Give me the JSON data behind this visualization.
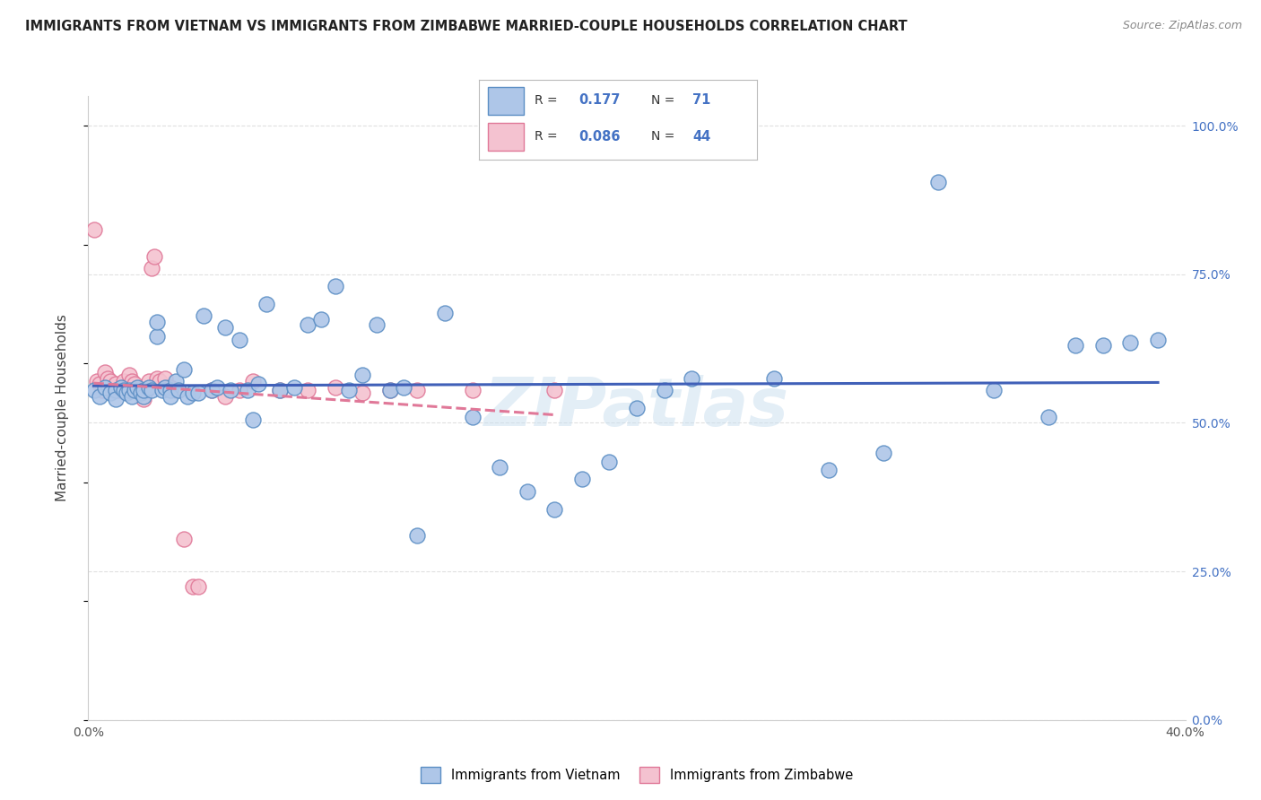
{
  "title": "IMMIGRANTS FROM VIETNAM VS IMMIGRANTS FROM ZIMBABWE MARRIED-COUPLE HOUSEHOLDS CORRELATION CHART",
  "source": "Source: ZipAtlas.com",
  "ylabel": "Married-couple Households",
  "xlim": [
    0.0,
    0.4
  ],
  "ylim": [
    0.0,
    1.05
  ],
  "xtick_positions": [
    0.0,
    0.08,
    0.16,
    0.24,
    0.32,
    0.4
  ],
  "xtick_labels": [
    "0.0%",
    "",
    "",
    "",
    "",
    "40.0%"
  ],
  "ytick_positions": [
    0.0,
    0.25,
    0.5,
    0.75,
    1.0
  ],
  "ytick_labels_right": [
    "0.0%",
    "25.0%",
    "50.0%",
    "75.0%",
    "100.0%"
  ],
  "watermark": "ZIPatlas",
  "legend_R_vietnam": "0.177",
  "legend_N_vietnam": "71",
  "legend_R_zimbabwe": "0.086",
  "legend_N_zimbabwe": "44",
  "vietnam_color": "#aec6e8",
  "zimbabwe_color": "#f4c2d0",
  "vietnam_edge_color": "#5b8ec4",
  "zimbabwe_edge_color": "#e07898",
  "trendline_vietnam_color": "#4060b8",
  "trendline_zimbabwe_color": "#e07898",
  "vietnam_scatter_x": [
    0.002,
    0.004,
    0.006,
    0.008,
    0.01,
    0.01,
    0.012,
    0.013,
    0.014,
    0.015,
    0.016,
    0.017,
    0.018,
    0.019,
    0.02,
    0.02,
    0.022,
    0.023,
    0.025,
    0.025,
    0.027,
    0.028,
    0.03,
    0.03,
    0.032,
    0.033,
    0.035,
    0.036,
    0.038,
    0.04,
    0.042,
    0.045,
    0.047,
    0.05,
    0.052,
    0.055,
    0.058,
    0.06,
    0.062,
    0.065,
    0.07,
    0.075,
    0.08,
    0.085,
    0.09,
    0.095,
    0.1,
    0.105,
    0.11,
    0.115,
    0.12,
    0.13,
    0.14,
    0.15,
    0.16,
    0.17,
    0.18,
    0.19,
    0.2,
    0.21,
    0.22,
    0.25,
    0.27,
    0.29,
    0.31,
    0.33,
    0.35,
    0.36,
    0.37,
    0.38,
    0.39
  ],
  "vietnam_scatter_y": [
    0.555,
    0.545,
    0.56,
    0.55,
    0.555,
    0.54,
    0.56,
    0.555,
    0.55,
    0.555,
    0.545,
    0.555,
    0.56,
    0.55,
    0.545,
    0.555,
    0.56,
    0.555,
    0.645,
    0.67,
    0.555,
    0.56,
    0.555,
    0.545,
    0.57,
    0.555,
    0.59,
    0.545,
    0.55,
    0.55,
    0.68,
    0.555,
    0.56,
    0.66,
    0.555,
    0.64,
    0.555,
    0.505,
    0.565,
    0.7,
    0.555,
    0.56,
    0.665,
    0.675,
    0.73,
    0.555,
    0.58,
    0.665,
    0.555,
    0.56,
    0.31,
    0.685,
    0.51,
    0.425,
    0.385,
    0.355,
    0.405,
    0.435,
    0.525,
    0.555,
    0.575,
    0.575,
    0.42,
    0.45,
    0.905,
    0.555,
    0.51,
    0.63,
    0.63,
    0.635,
    0.64
  ],
  "zimbabwe_scatter_x": [
    0.002,
    0.003,
    0.004,
    0.005,
    0.006,
    0.007,
    0.008,
    0.009,
    0.01,
    0.011,
    0.012,
    0.013,
    0.014,
    0.015,
    0.015,
    0.016,
    0.017,
    0.018,
    0.019,
    0.02,
    0.021,
    0.022,
    0.023,
    0.024,
    0.025,
    0.026,
    0.028,
    0.03,
    0.032,
    0.035,
    0.038,
    0.04,
    0.045,
    0.05,
    0.055,
    0.06,
    0.07,
    0.08,
    0.09,
    0.1,
    0.11,
    0.12,
    0.14,
    0.17
  ],
  "zimbabwe_scatter_y": [
    0.825,
    0.57,
    0.565,
    0.555,
    0.585,
    0.575,
    0.57,
    0.555,
    0.565,
    0.555,
    0.555,
    0.57,
    0.56,
    0.555,
    0.58,
    0.57,
    0.565,
    0.555,
    0.555,
    0.54,
    0.555,
    0.57,
    0.76,
    0.78,
    0.575,
    0.57,
    0.575,
    0.56,
    0.555,
    0.305,
    0.225,
    0.225,
    0.555,
    0.545,
    0.555,
    0.57,
    0.555,
    0.555,
    0.56,
    0.55,
    0.555,
    0.555,
    0.555,
    0.555
  ],
  "background_color": "#ffffff",
  "grid_color": "#e0e0e0"
}
